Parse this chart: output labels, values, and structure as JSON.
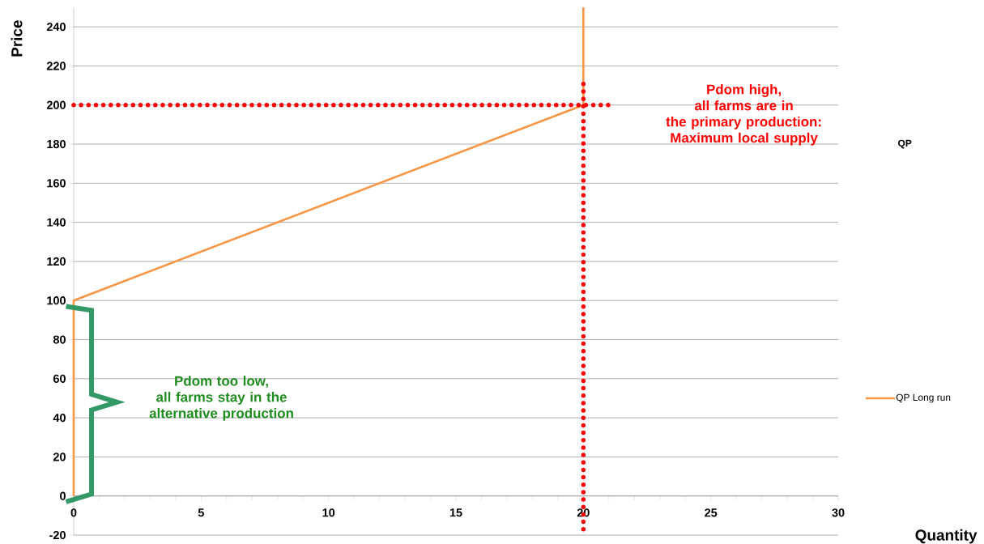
{
  "chart_data": {
    "type": "line",
    "xlabel": "Quantity",
    "ylabel": "Price",
    "legend_title": "QP",
    "legend": "right",
    "grid": "y",
    "xlim": [
      0,
      30
    ],
    "ylim": [
      -20,
      250
    ],
    "xticks": [
      0,
      5,
      10,
      15,
      20,
      25,
      30
    ],
    "yticks": [
      -20,
      0,
      20,
      40,
      60,
      80,
      100,
      120,
      140,
      160,
      180,
      200,
      220,
      240
    ],
    "series": [
      {
        "name": "QP Long run",
        "color": "#f79646",
        "line_style": "solid",
        "x": [
          0,
          0,
          20,
          20
        ],
        "values": [
          0,
          100,
          200,
          250
        ]
      },
      {
        "color": "#ff0000",
        "line_style": "dotted",
        "x": [
          0,
          21
        ],
        "values": [
          200,
          200
        ]
      },
      {
        "color": "#ff0000",
        "line_style": "dotted",
        "x": [
          20,
          20
        ],
        "values": [
          -17,
          213
        ]
      }
    ],
    "annotations": [
      "Pdom high,\nall farms are in\nthe primary production:\nMaximum local supply",
      "Pdom too low,\nall farms stay in the\nalternative production"
    ]
  }
}
